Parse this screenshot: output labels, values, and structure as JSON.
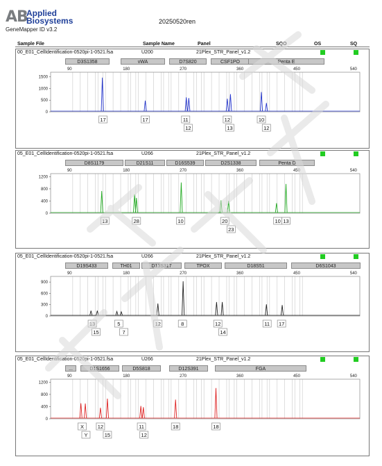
{
  "header": {
    "logo_mark": "AB",
    "logo_line1": "Applied",
    "logo_line2": "Biosystems",
    "app_version": "GeneMapper ID v3.2",
    "run_title": "20250520ren",
    "columns": {
      "sample_file": "Sample File",
      "sample_name": "Sample Name",
      "panel": "Panel",
      "sqo": "SQO",
      "os": "OS",
      "sq": "SQ"
    }
  },
  "colors": {
    "blue": "#2233cc",
    "green": "#22aa22",
    "black": "#222222",
    "red": "#dd2222",
    "indicator": "#22cc22"
  },
  "chart_data": [
    {
      "type": "line",
      "dye": "blue",
      "sample_file": "00_E01_CellIdentification-0520pi-1-0521.fsa",
      "sample_name": "U200",
      "panel": "21Plex_STR_Panel_v1.2",
      "x_ticks": [
        90,
        180,
        270,
        360,
        450,
        540
      ],
      "y_ticks": [
        0,
        500,
        1000,
        1500
      ],
      "xlim": [
        60,
        550
      ],
      "ylim": [
        0,
        1700
      ],
      "markers": [
        "D3S1358",
        "vWA",
        "D7S820",
        "CSF1PO",
        "Penta E"
      ],
      "peaks": [
        {
          "x": 142,
          "y": 1470
        },
        {
          "x": 210,
          "y": 480
        },
        {
          "x": 275,
          "y": 620
        },
        {
          "x": 279,
          "y": 590
        },
        {
          "x": 340,
          "y": 560
        },
        {
          "x": 345,
          "y": 760
        },
        {
          "x": 394,
          "y": 850
        },
        {
          "x": 402,
          "y": 380
        }
      ],
      "alleles": [
        {
          "x": 143,
          "row": 1,
          "label": "17"
        },
        {
          "x": 210,
          "row": 1,
          "label": "17"
        },
        {
          "x": 274,
          "row": 1,
          "label": "11"
        },
        {
          "x": 278,
          "row": 2,
          "label": "12"
        },
        {
          "x": 340,
          "row": 1,
          "label": "12"
        },
        {
          "x": 344,
          "row": 2,
          "label": "13"
        },
        {
          "x": 394,
          "row": 1,
          "label": "10"
        },
        {
          "x": 402,
          "row": 2,
          "label": "12"
        }
      ]
    },
    {
      "type": "line",
      "dye": "green",
      "sample_file": "05_E01_CellIdentification-0520pi-1-0521.fsa",
      "sample_name": "U266",
      "panel": "21Plex_STR_Panel_v1.2",
      "x_ticks": [
        90,
        180,
        270,
        360,
        450,
        540
      ],
      "y_ticks": [
        0,
        400,
        800,
        1200
      ],
      "xlim": [
        60,
        550
      ],
      "ylim": [
        0,
        1300
      ],
      "markers": [
        "D8S1179",
        "D21S11",
        "D16S539",
        "D2S1338",
        "Penta D"
      ],
      "peaks": [
        {
          "x": 141,
          "y": 730
        },
        {
          "x": 193,
          "y": 620
        },
        {
          "x": 196,
          "y": 500
        },
        {
          "x": 267,
          "y": 1010
        },
        {
          "x": 330,
          "y": 420
        },
        {
          "x": 342,
          "y": 400
        },
        {
          "x": 418,
          "y": 330
        },
        {
          "x": 433,
          "y": 960
        }
      ],
      "alleles": [
        {
          "x": 146,
          "row": 1,
          "label": "13"
        },
        {
          "x": 196,
          "row": 1,
          "label": "28"
        },
        {
          "x": 266,
          "row": 1,
          "label": "10"
        },
        {
          "x": 336,
          "row": 1,
          "label": "20"
        },
        {
          "x": 346,
          "row": 2,
          "label": "23"
        },
        {
          "x": 420,
          "row": 1,
          "label": "10"
        },
        {
          "x": 433,
          "row": 1,
          "label": "13"
        }
      ]
    },
    {
      "type": "line",
      "dye": "black",
      "sample_file": "05_E01_CellIdentification-0520pi-1-0521.fsa",
      "sample_name": "U266",
      "panel": "21Plex_STR_Panel_v1.2",
      "x_ticks": [
        90,
        180,
        270,
        360,
        450,
        540
      ],
      "y_ticks": [
        0,
        300,
        600,
        900
      ],
      "xlim": [
        60,
        550
      ],
      "ylim": [
        0,
        1050
      ],
      "markers": [
        "D19S433",
        "TH01",
        "D13S317",
        "TPOX",
        "D18S51",
        "D6S1043"
      ],
      "peaks": [
        {
          "x": 124,
          "y": 140
        },
        {
          "x": 134,
          "y": 140
        },
        {
          "x": 165,
          "y": 120
        },
        {
          "x": 172,
          "y": 110
        },
        {
          "x": 230,
          "y": 330
        },
        {
          "x": 270,
          "y": 920
        },
        {
          "x": 323,
          "y": 370
        },
        {
          "x": 332,
          "y": 370
        },
        {
          "x": 402,
          "y": 310
        },
        {
          "x": 427,
          "y": 290
        }
      ],
      "alleles": [
        {
          "x": 126,
          "row": 1,
          "label": "13"
        },
        {
          "x": 132,
          "row": 2,
          "label": "15"
        },
        {
          "x": 168,
          "row": 1,
          "label": "5"
        },
        {
          "x": 176,
          "row": 2,
          "label": "7"
        },
        {
          "x": 230,
          "row": 1,
          "label": "12"
        },
        {
          "x": 269,
          "row": 1,
          "label": "8"
        },
        {
          "x": 325,
          "row": 1,
          "label": "12"
        },
        {
          "x": 333,
          "row": 2,
          "label": "14"
        },
        {
          "x": 403,
          "row": 1,
          "label": "11"
        },
        {
          "x": 426,
          "row": 1,
          "label": "17"
        }
      ]
    },
    {
      "type": "line",
      "dye": "red",
      "sample_file": "05_E01_CellIdentification-0520pi-1-0521.fsa",
      "sample_name": "U266",
      "panel": "21Plex_STR_Panel_v1.2",
      "x_ticks": [
        90,
        180,
        270,
        360,
        450,
        540
      ],
      "y_ticks": [
        0,
        400,
        800,
        1200
      ],
      "xlim": [
        60,
        550
      ],
      "ylim": [
        0,
        1300
      ],
      "markers": [
        "...",
        "D1S1656",
        "D5S818",
        "D12S391",
        "FGA"
      ],
      "peaks": [
        {
          "x": 108,
          "y": 510
        },
        {
          "x": 115,
          "y": 500
        },
        {
          "x": 139,
          "y": 360
        },
        {
          "x": 150,
          "y": 660
        },
        {
          "x": 203,
          "y": 420
        },
        {
          "x": 207,
          "y": 380
        },
        {
          "x": 258,
          "y": 630
        },
        {
          "x": 322,
          "y": 1010
        }
      ],
      "alleles": [
        {
          "x": 110,
          "row": 1,
          "label": "X"
        },
        {
          "x": 116,
          "row": 2,
          "label": "Y"
        },
        {
          "x": 139,
          "row": 1,
          "label": "12"
        },
        {
          "x": 150,
          "row": 2,
          "label": "15"
        },
        {
          "x": 204,
          "row": 1,
          "label": "11"
        },
        {
          "x": 208,
          "row": 2,
          "label": "12"
        },
        {
          "x": 258,
          "row": 1,
          "label": "18"
        },
        {
          "x": 322,
          "row": 1,
          "label": "18"
        }
      ]
    }
  ]
}
